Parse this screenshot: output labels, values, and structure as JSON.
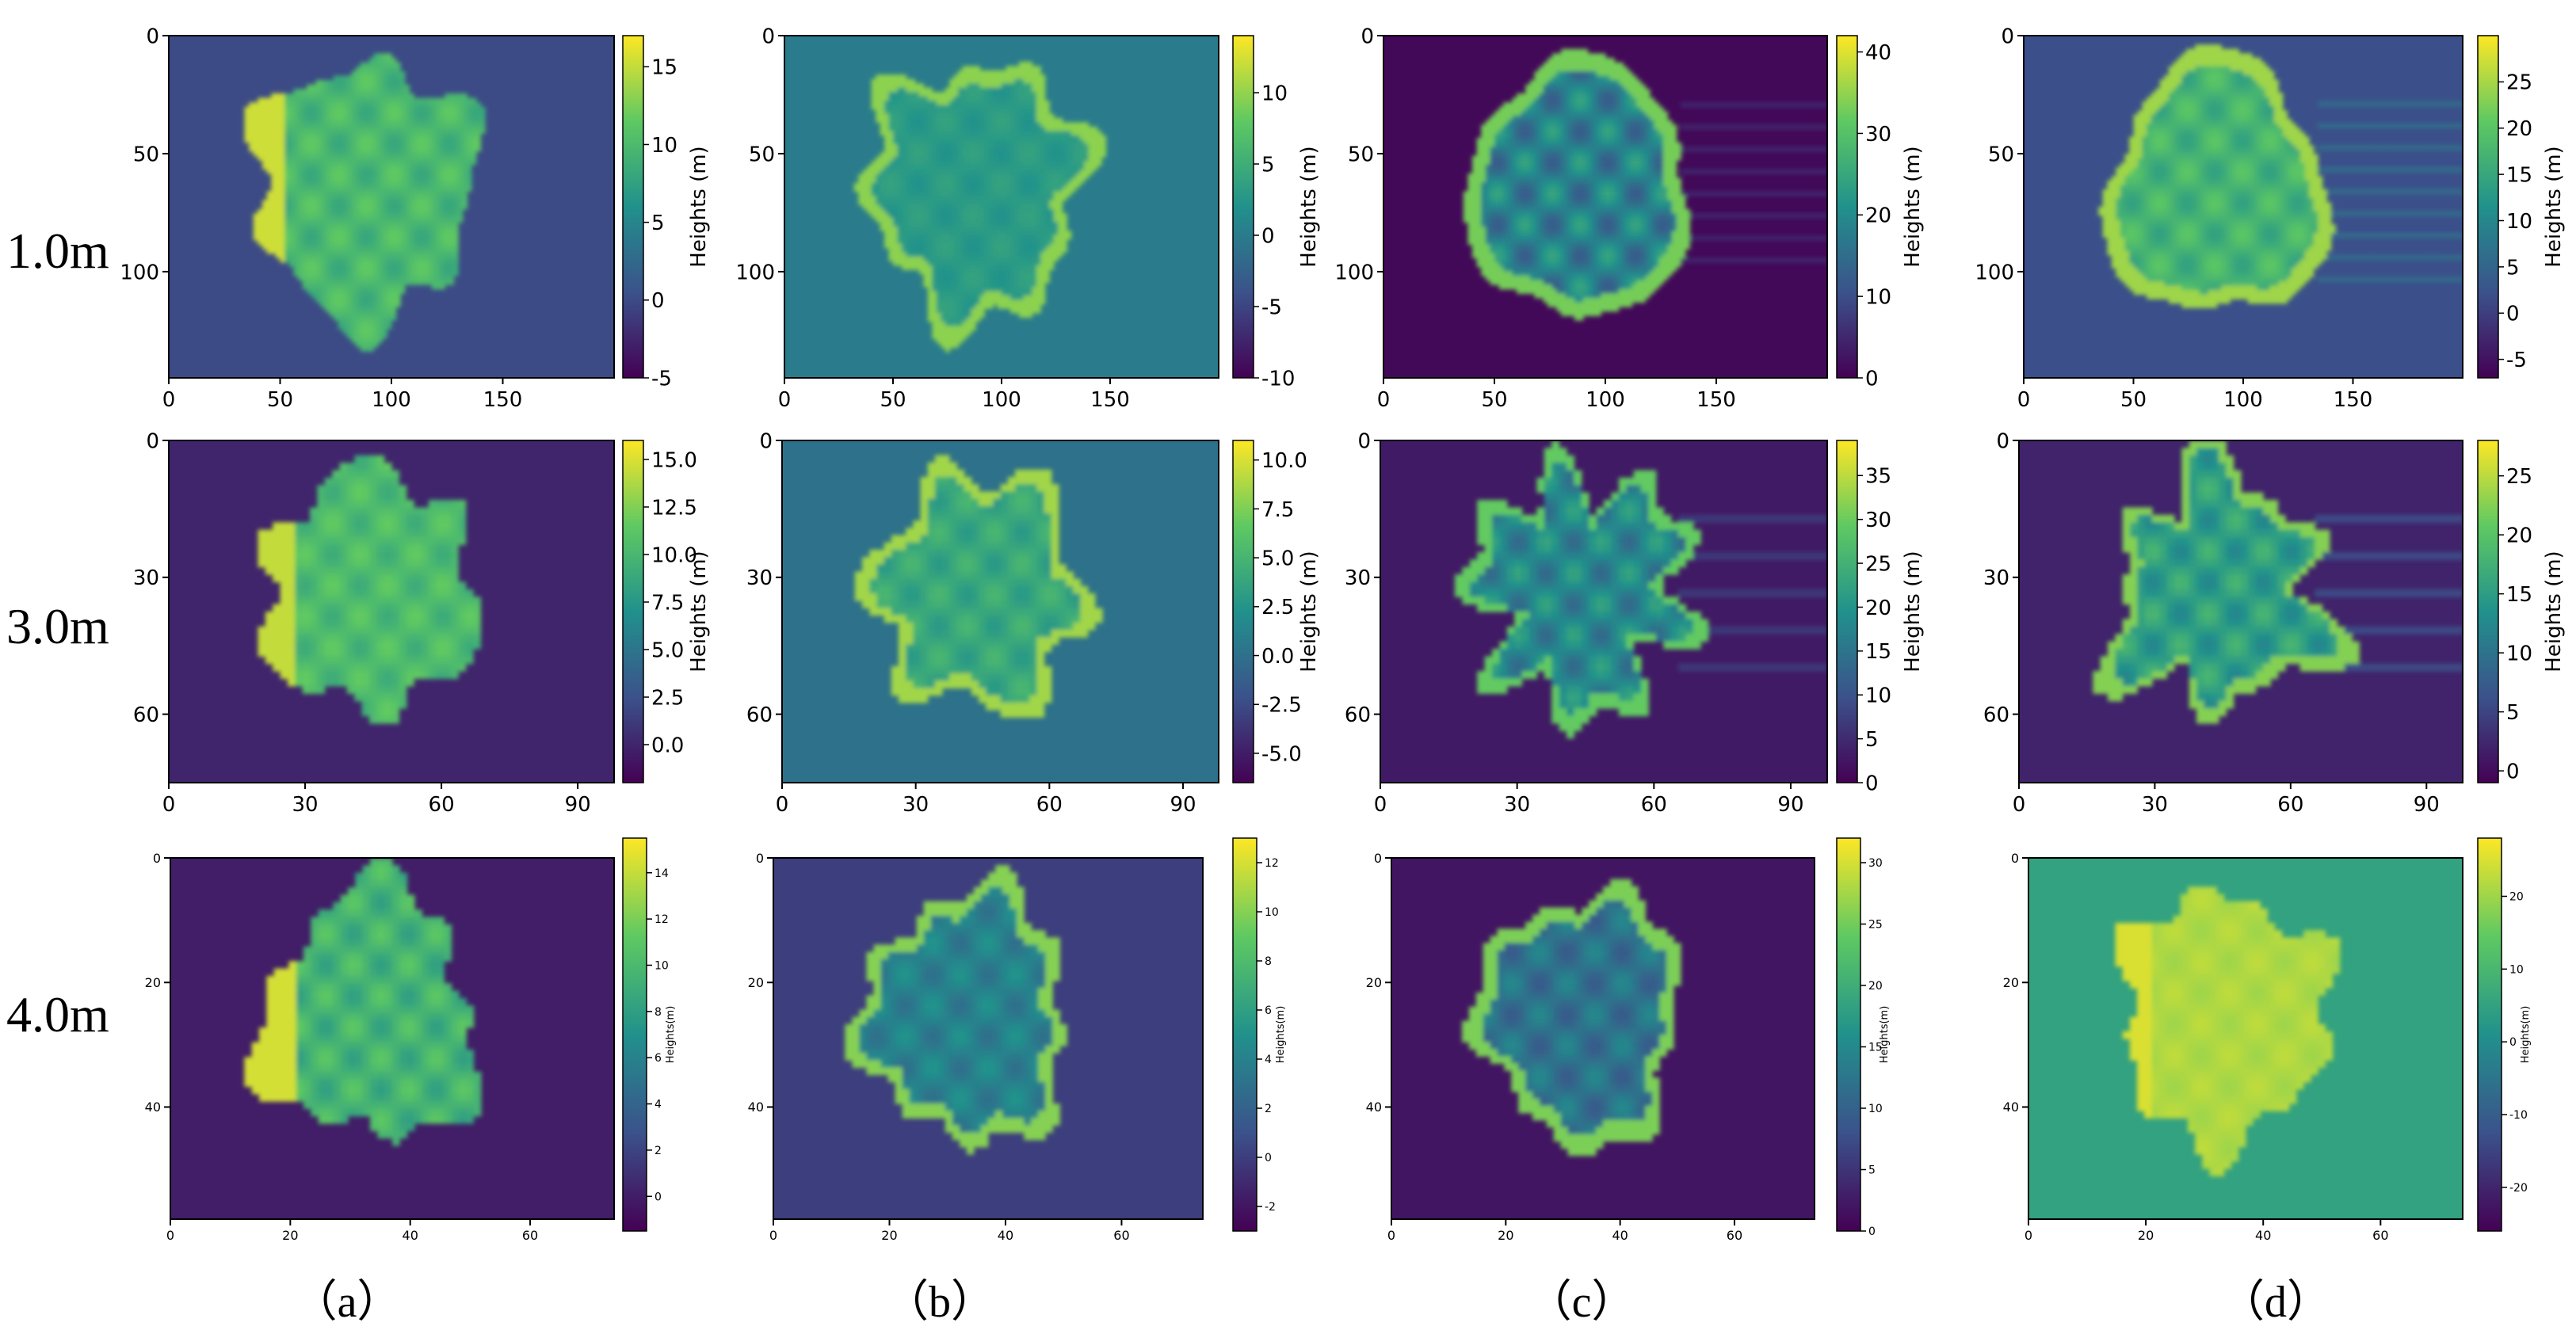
{
  "row_labels": [
    "1.0m",
    "3.0m",
    "4.0m"
  ],
  "column_labels": [
    "（a）",
    "（b）",
    "（c）",
    "（d）"
  ],
  "colormap": [
    "#440154",
    "#3b528b",
    "#21918c",
    "#5ec962",
    "#fde725"
  ],
  "chart_data": [
    {
      "type": "heatmap",
      "panel": "1.0m (a)",
      "xticks": [
        "0",
        "50",
        "100",
        "150"
      ],
      "yticks": [
        "0",
        "50",
        "100"
      ],
      "xlim": [
        0,
        200
      ],
      "ylim": [
        145,
        0
      ],
      "background": 0,
      "crown_mean": 8,
      "crown_peak": 16,
      "edge_effect": "bright-left",
      "colorbar": {
        "label": "Heights (m)",
        "min": -5,
        "max": 17,
        "ticks": [
          "15",
          "10",
          "5",
          "0",
          "-5"
        ]
      }
    },
    {
      "type": "heatmap",
      "panel": "1.0m (b)",
      "xticks": [
        "0",
        "50",
        "100",
        "150"
      ],
      "yticks": [
        "0",
        "50",
        "100"
      ],
      "xlim": [
        0,
        200
      ],
      "ylim": [
        145,
        0
      ],
      "background": 0,
      "crown_mean": 3,
      "crown_peak": 12,
      "edge_effect": "rim",
      "colorbar": {
        "label": "Heights (m)",
        "min": -10,
        "max": 14,
        "ticks": [
          "10",
          "5",
          "0",
          "-5",
          "-10"
        ]
      }
    },
    {
      "type": "heatmap",
      "panel": "1.0m (c)",
      "xticks": [
        "0",
        "50",
        "100",
        "150"
      ],
      "yticks": [
        "0",
        "50",
        "100"
      ],
      "xlim": [
        0,
        200
      ],
      "ylim": [
        145,
        0
      ],
      "background": 1,
      "crown_mean": 12,
      "crown_peak": 40,
      "edge_effect": "rim-streaks",
      "colorbar": {
        "label": "Heights (m)",
        "min": 0,
        "max": 42,
        "ticks": [
          "40",
          "30",
          "20",
          "10",
          "0"
        ]
      }
    },
    {
      "type": "heatmap",
      "panel": "1.0m (d)",
      "xticks": [
        "0",
        "50",
        "100",
        "150"
      ],
      "yticks": [
        "0",
        "50",
        "100"
      ],
      "xlim": [
        0,
        200
      ],
      "ylim": [
        145,
        0
      ],
      "background": 2,
      "crown_mean": 14,
      "crown_peak": 28,
      "edge_effect": "rim-streaks",
      "colorbar": {
        "label": "Heights (m)",
        "min": -7,
        "max": 30,
        "ticks": [
          "25",
          "20",
          "15",
          "10",
          "5",
          "0",
          "-5"
        ]
      }
    },
    {
      "type": "heatmap",
      "panel": "3.0m (a)",
      "xticks": [
        "0",
        "30",
        "60",
        "90"
      ],
      "yticks": [
        "0",
        "30",
        "60"
      ],
      "xlim": [
        0,
        98
      ],
      "ylim": [
        75,
        0
      ],
      "background": 0,
      "crown_mean": 9,
      "crown_peak": 15,
      "edge_effect": "bright-left",
      "colorbar": {
        "label": "Heights (m)",
        "min": -2,
        "max": 16,
        "ticks": [
          "15.0",
          "12.5",
          "10.0",
          "7.5",
          "5.0",
          "2.5",
          "0.0"
        ]
      }
    },
    {
      "type": "heatmap",
      "panel": "3.0m (b)",
      "xticks": [
        "0",
        "30",
        "60",
        "90"
      ],
      "yticks": [
        "0",
        "30",
        "60"
      ],
      "xlim": [
        0,
        98
      ],
      "ylim": [
        75,
        0
      ],
      "background": 0,
      "crown_mean": 4,
      "crown_peak": 10,
      "edge_effect": "rim",
      "colorbar": {
        "label": "Heights (m)",
        "min": -6.5,
        "max": 11,
        "ticks": [
          "10.0",
          "7.5",
          "5.0",
          "2.5",
          "0.0",
          "-2.5",
          "-5.0"
        ]
      }
    },
    {
      "type": "heatmap",
      "panel": "3.0m (c)",
      "xticks": [
        "0",
        "30",
        "60",
        "90"
      ],
      "yticks": [
        "0",
        "30",
        "60"
      ],
      "xlim": [
        0,
        98
      ],
      "ylim": [
        75,
        0
      ],
      "background": 3,
      "crown_mean": 13,
      "crown_peak": 35,
      "edge_effect": "rim-streaks",
      "colorbar": {
        "label": "Heights (m)",
        "min": 0,
        "max": 39,
        "ticks": [
          "35",
          "30",
          "25",
          "20",
          "15",
          "10",
          "5",
          "0"
        ]
      }
    },
    {
      "type": "heatmap",
      "panel": "3.0m (d)",
      "xticks": [
        "0",
        "30",
        "60",
        "90"
      ],
      "yticks": [
        "0",
        "30",
        "60"
      ],
      "xlim": [
        0,
        98
      ],
      "ylim": [
        75,
        0
      ],
      "background": 2,
      "crown_mean": 12,
      "crown_peak": 26,
      "edge_effect": "rim-streaks",
      "colorbar": {
        "label": "Heights (m)",
        "min": -1,
        "max": 28,
        "ticks": [
          "25",
          "20",
          "15",
          "10",
          "5",
          "0"
        ]
      }
    },
    {
      "type": "heatmap",
      "panel": "4.0m (a)",
      "xticks": [
        "0",
        "20",
        "40",
        "60"
      ],
      "yticks": [
        "0",
        "20",
        "40"
      ],
      "xlim": [
        0,
        74
      ],
      "ylim": [
        58,
        0
      ],
      "background": 0,
      "crown_mean": 8,
      "crown_peak": 15,
      "edge_effect": "bright-left",
      "colorbar": {
        "label": "Heights(m)",
        "min": -1.5,
        "max": 15.5,
        "ticks": [
          "14",
          "12",
          "10",
          "8",
          "6",
          "4",
          "2",
          "0"
        ]
      }
    },
    {
      "type": "heatmap",
      "panel": "4.0m (b)",
      "xticks": [
        "0",
        "20",
        "40",
        "60"
      ],
      "yticks": [
        "0",
        "20",
        "40"
      ],
      "xlim": [
        0,
        74
      ],
      "ylim": [
        58,
        0
      ],
      "background": 0,
      "crown_mean": 4,
      "crown_peak": 12,
      "edge_effect": "rim",
      "colorbar": {
        "label": "Heights(m)",
        "min": -3,
        "max": 13,
        "ticks": [
          "12",
          "10",
          "8",
          "6",
          "4",
          "2",
          "0",
          "-2"
        ]
      }
    },
    {
      "type": "heatmap",
      "panel": "4.0m (c)",
      "xticks": [
        "0",
        "20",
        "40",
        "60"
      ],
      "yticks": [
        "0",
        "20",
        "40"
      ],
      "xlim": [
        0,
        74
      ],
      "ylim": [
        58,
        0
      ],
      "background": 2,
      "crown_mean": 12,
      "crown_peak": 30,
      "edge_effect": "rim",
      "colorbar": {
        "label": "Heights(m)",
        "min": 0,
        "max": 32,
        "ticks": [
          "30",
          "25",
          "20",
          "15",
          "10",
          "5",
          "0"
        ]
      }
    },
    {
      "type": "heatmap",
      "panel": "4.0m (d)",
      "xticks": [
        "0",
        "20",
        "40",
        "60"
      ],
      "yticks": [
        "0",
        "20",
        "40"
      ],
      "xlim": [
        0,
        74
      ],
      "ylim": [
        58,
        0
      ],
      "background": 5,
      "crown_mean": 20,
      "crown_peak": 26,
      "edge_effect": "bright-left",
      "colorbar": {
        "label": "Heights(m)",
        "min": -26,
        "max": 28,
        "ticks": [
          "20",
          "10",
          "0",
          "-10",
          "-20"
        ]
      }
    }
  ]
}
